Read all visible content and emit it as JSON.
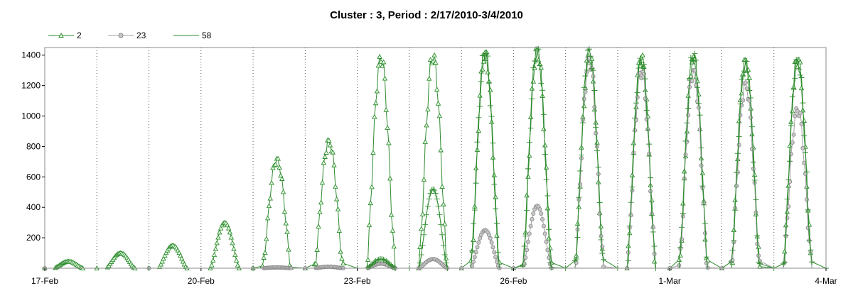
{
  "chart_data": {
    "type": "line",
    "title": "Cluster : 3, Period : 2/17/2010-3/4/2010",
    "xlabel": "",
    "ylabel": "",
    "x_axis": {
      "type": "date",
      "range": [
        "2010-02-17",
        "2010-03-04"
      ],
      "tick_labels": [
        "17-Feb",
        "20-Feb",
        "23-Feb",
        "26-Feb",
        "1-Mar",
        "4-Mar"
      ]
    },
    "ylim": [
      0,
      1450
    ],
    "y_tick_labels": [
      "200",
      "400",
      "600",
      "800",
      "1000",
      "1200",
      "1400"
    ],
    "grid": "vertical dotted lines at each day",
    "legend": "top-left",
    "series": [
      {
        "name": "2",
        "color": "#2e8b2e",
        "marker": "triangle",
        "daily": [
          {
            "date": "2010-02-17",
            "peak": 45
          },
          {
            "date": "2010-02-18",
            "peak": 100
          },
          {
            "date": "2010-02-19",
            "peak": 150
          },
          {
            "date": "2010-02-20",
            "peak": 300
          },
          {
            "date": "2010-02-21",
            "peak": 720
          },
          {
            "date": "2010-02-22",
            "peak": 840
          },
          {
            "date": "2010-02-23",
            "peak": 1390
          },
          {
            "date": "2010-02-24",
            "peak": 1400
          },
          {
            "date": "2010-02-25",
            "peak": 1420
          },
          {
            "date": "2010-02-26",
            "peak": 1440
          },
          {
            "date": "2010-02-27",
            "peak": 1400
          },
          {
            "date": "2010-02-28",
            "peak": 1400
          },
          {
            "date": "2010-03-01",
            "peak": 1390
          },
          {
            "date": "2010-03-02",
            "peak": 1370
          },
          {
            "date": "2010-03-03",
            "peak": 1380
          }
        ]
      },
      {
        "name": "23",
        "color": "#a0a0a0",
        "marker": "circle",
        "daily": [
          {
            "date": "2010-02-17",
            "peak": 0
          },
          {
            "date": "2010-02-18",
            "peak": 0
          },
          {
            "date": "2010-02-19",
            "peak": 0
          },
          {
            "date": "2010-02-20",
            "peak": 0
          },
          {
            "date": "2010-02-21",
            "peak": 5
          },
          {
            "date": "2010-02-22",
            "peak": 10
          },
          {
            "date": "2010-02-23",
            "peak": 30
          },
          {
            "date": "2010-02-24",
            "peak": 60
          },
          {
            "date": "2010-02-25",
            "peak": 250
          },
          {
            "date": "2010-02-26",
            "peak": 410
          },
          {
            "date": "2010-02-27",
            "peak": 1380
          },
          {
            "date": "2010-02-28",
            "peak": 1300
          },
          {
            "date": "2010-03-01",
            "peak": 1300
          },
          {
            "date": "2010-03-02",
            "peak": 1220
          },
          {
            "date": "2010-03-03",
            "peak": 1050
          }
        ]
      },
      {
        "name": "58",
        "color": "#2e8b2e",
        "marker": "plus",
        "daily": [
          {
            "date": "2010-02-17",
            "peak": 0
          },
          {
            "date": "2010-02-18",
            "peak": 0
          },
          {
            "date": "2010-02-19",
            "peak": 0
          },
          {
            "date": "2010-02-20",
            "peak": 0
          },
          {
            "date": "2010-02-21",
            "peak": 0
          },
          {
            "date": "2010-02-22",
            "peak": 0
          },
          {
            "date": "2010-02-23",
            "peak": 60
          },
          {
            "date": "2010-02-24",
            "peak": 520
          },
          {
            "date": "2010-02-25",
            "peak": 1420
          },
          {
            "date": "2010-02-26",
            "peak": 1440
          },
          {
            "date": "2010-02-27",
            "peak": 1440
          },
          {
            "date": "2010-02-28",
            "peak": 1380
          },
          {
            "date": "2010-03-01",
            "peak": 1410
          },
          {
            "date": "2010-03-02",
            "peak": 1360
          },
          {
            "date": "2010-03-03",
            "peak": 1370
          }
        ]
      }
    ]
  }
}
